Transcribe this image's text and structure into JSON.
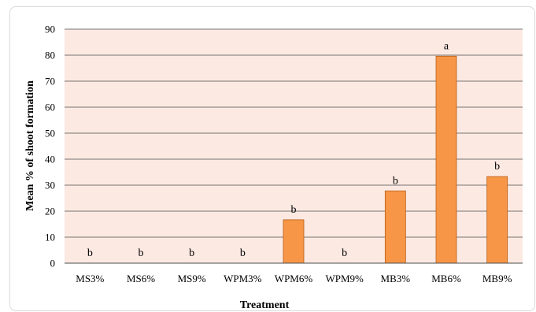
{
  "chart_data": {
    "type": "bar",
    "title": "",
    "xlabel": "Treatment",
    "ylabel": "Mean % of shoot formation",
    "ylim": [
      0,
      90
    ],
    "yticks": [
      0,
      10,
      20,
      30,
      40,
      50,
      60,
      70,
      80,
      90
    ],
    "categories": [
      "MS3%",
      "MS6%",
      "MS9%",
      "WPM3%",
      "WPM6%",
      "WPM9%",
      "MB3%",
      "MB6%",
      "MB9%"
    ],
    "values": [
      0,
      0,
      0,
      0,
      16.7,
      0,
      27.8,
      79.6,
      33.3
    ],
    "annotations": [
      "b",
      "b",
      "b",
      "b",
      "b",
      "b",
      "b",
      "a",
      "b"
    ],
    "grid": true,
    "legend": "none",
    "colors": {
      "bar_fill": "#F79646",
      "bar_stroke": "#B65F1A",
      "plot_background": "#FCE9E2",
      "gridline": "#4d4d4d"
    }
  }
}
